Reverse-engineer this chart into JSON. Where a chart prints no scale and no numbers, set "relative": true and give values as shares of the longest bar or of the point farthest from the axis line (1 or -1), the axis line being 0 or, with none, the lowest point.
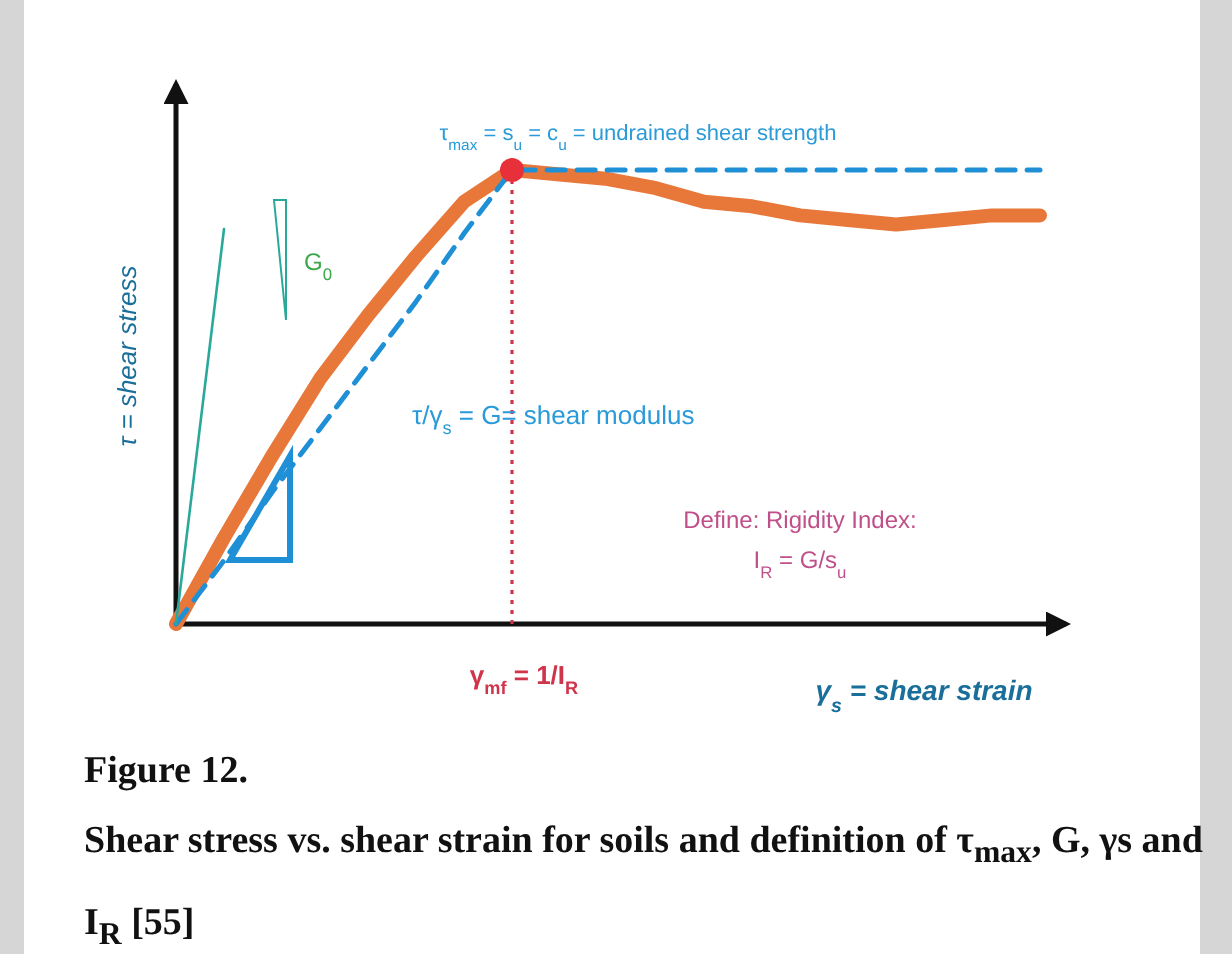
{
  "chart_data": {
    "type": "line",
    "relative": true,
    "title": "Figure 12.",
    "subtitle": "Shear stress vs. shear strain for soils and definition of τ$_{max}$, G, γs and I$_{R}$ [55]",
    "xlabel": "γ$_{s}$ = shear strain",
    "ylabel": "τ = shear stress",
    "categories": [
      null,
      null,
      null,
      null,
      null,
      null,
      null,
      null,
      null,
      null,
      null,
      null,
      null,
      null,
      null,
      null,
      null,
      null,
      null
    ],
    "series": [
      {
        "color": "#e8773a",
        "values": [
          0,
          0.19,
          0.37,
          0.54,
          0.68,
          0.81,
          0.93,
          1,
          0.99,
          0.98,
          0.96,
          0.93,
          0.92,
          0.9,
          0.89,
          0.88,
          0.89,
          0.9,
          0.9
        ]
      },
      {
        "color": "#1f8fd6",
        "line_style": "dashed",
        "values": [
          0,
          0.14,
          0.29,
          0.43,
          0.57,
          0.71,
          0.86,
          1,
          1,
          1,
          1,
          1,
          1,
          1,
          1,
          1,
          1,
          1,
          1
        ]
      },
      {
        "color": "#2aa89a",
        "values": [
          0,
          0.87,
          null,
          null,
          null,
          null,
          null,
          null,
          null,
          null,
          null,
          null,
          null,
          null,
          null,
          null,
          null,
          null,
          null
        ]
      }
    ],
    "annotations": [
      {
        "text": "τ$_{max}$ = s$_{u}$ = c$_{u}$ = undrained shear strength",
        "y": 1
      },
      "G$_{0}$",
      "τ/γ$_{s}$ = G= shear modulus",
      "Define: Rigidity Index:",
      "I$_{R}$ = G/s$_{u}$",
      "γ$_{mf}$ = 1/I$_{R}$"
    ]
  }
}
